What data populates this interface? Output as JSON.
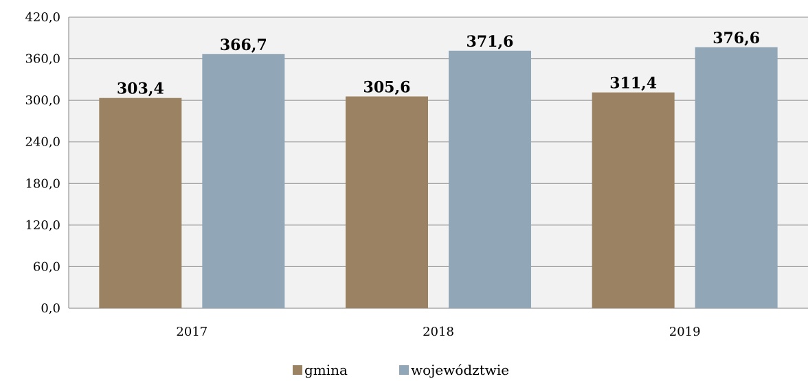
{
  "chart_data": {
    "type": "bar",
    "categories": [
      "2017",
      "2018",
      "2019"
    ],
    "series": [
      {
        "name": "gmina",
        "values": [
          303.4,
          305.6,
          311.4
        ],
        "labels": [
          "303,4",
          "305,6",
          "311,4"
        ],
        "color": "#9b8263"
      },
      {
        "name": "województwie",
        "values": [
          366.7,
          371.6,
          376.6
        ],
        "labels": [
          "366,7",
          "371,6",
          "376,6"
        ],
        "color": "#91a7b7"
      }
    ],
    "yticks": [
      "0,0",
      "60,0",
      "120,0",
      "180,0",
      "240,0",
      "300,0",
      "360,0",
      "420,0"
    ],
    "ylim": [
      0,
      420
    ],
    "grid": true,
    "legend": "bottom",
    "plot_background": "#f2f2f2"
  }
}
